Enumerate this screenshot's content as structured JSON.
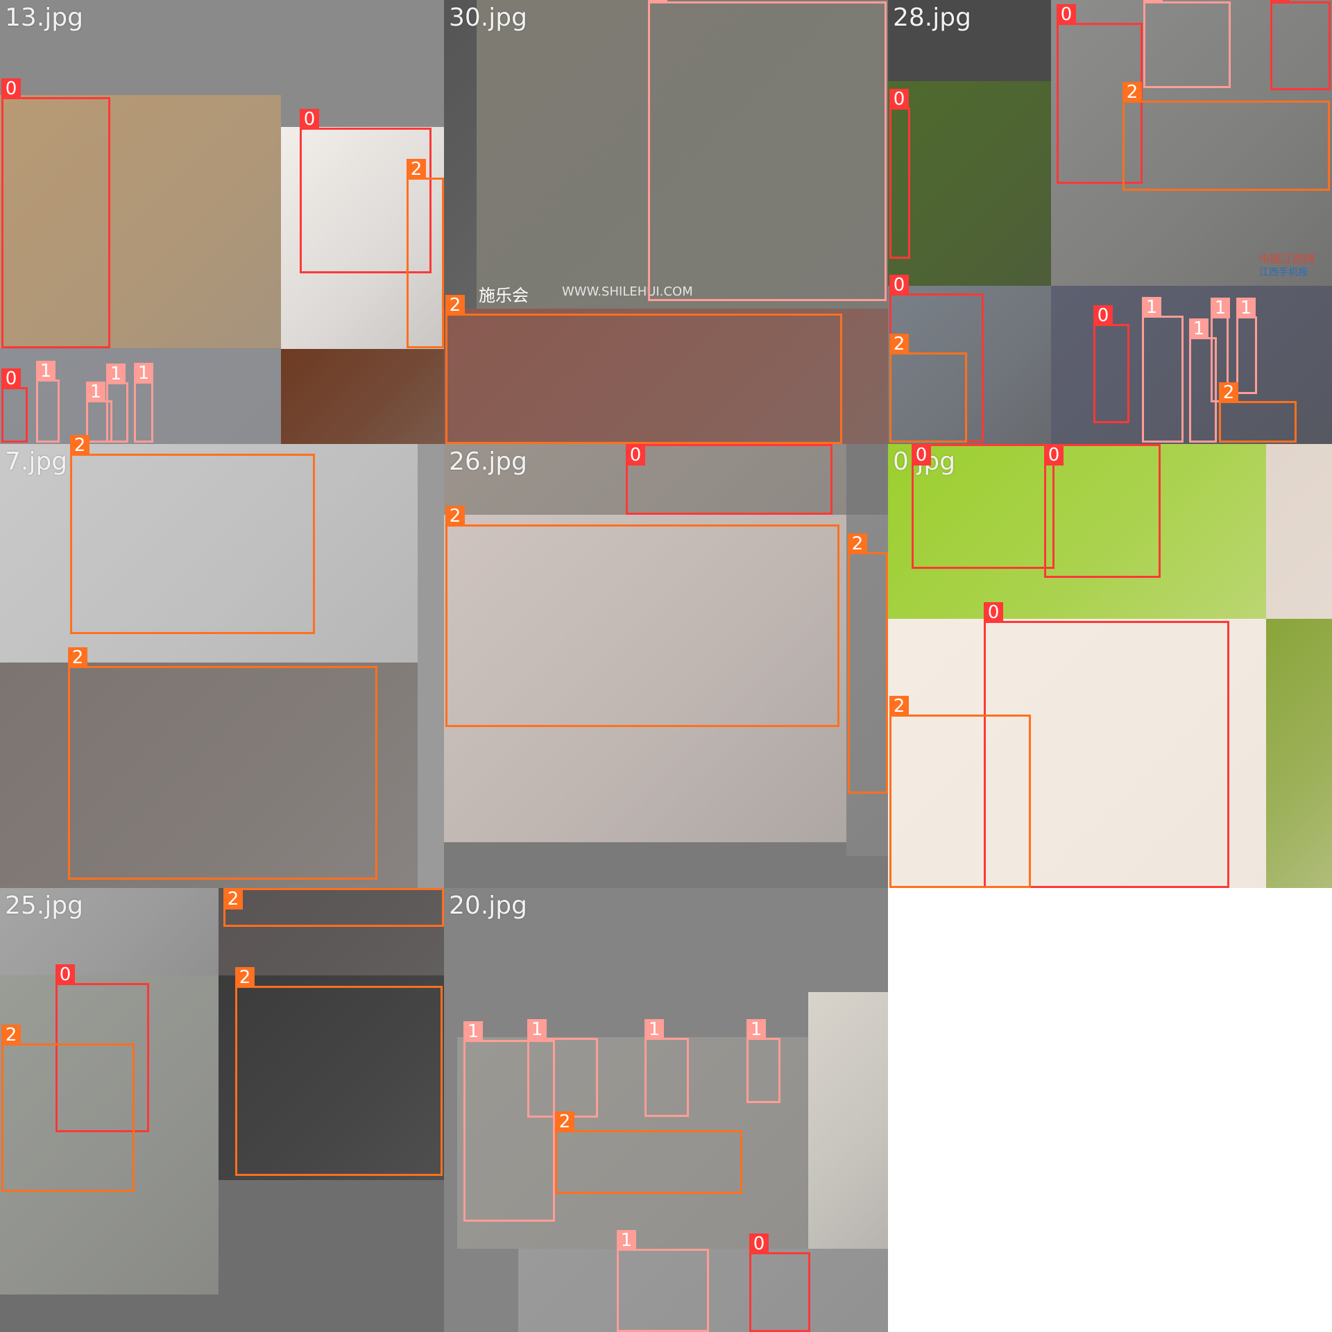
{
  "mosaic": {
    "tiles": [
      {
        "label": "13.jpg",
        "bg": "#8a8a8a",
        "photos": [
          {
            "color": "#b89a74"
          },
          {
            "color": "#f2eeea"
          },
          {
            "color": "#8c8f95"
          },
          {
            "color": "#6e3a22"
          }
        ],
        "boxes": [
          {
            "cls": "0"
          },
          {
            "cls": "0"
          },
          {
            "cls": "2"
          },
          {
            "cls": "0"
          },
          {
            "cls": "1"
          },
          {
            "cls": "1"
          },
          {
            "cls": "1"
          },
          {
            "cls": "1"
          }
        ],
        "watermarks": []
      },
      {
        "label": "30.jpg",
        "bg": "#7a7a7a",
        "photos": [
          {
            "color": "#7d7b72"
          },
          {
            "color": "#8a5a50"
          },
          {
            "color": "#555555"
          }
        ],
        "boxes": [
          {
            "cls": "1"
          },
          {
            "cls": "2"
          }
        ],
        "watermarks": [
          {
            "text": "施乐会"
          },
          {
            "text": "WWW.SHILEHUI.COM"
          }
        ]
      },
      {
        "label": "28.jpg",
        "bg": "#4a4a4a",
        "photos": [
          {
            "color": "#4f6a2e"
          },
          {
            "color": "#8d8d8b"
          },
          {
            "color": "#7a8088"
          },
          {
            "color": "#5d6070"
          }
        ],
        "boxes": [
          {
            "cls": "0"
          },
          {
            "cls": "1"
          },
          {
            "cls": "0"
          },
          {
            "cls": "0"
          },
          {
            "cls": "2"
          },
          {
            "cls": "0"
          },
          {
            "cls": "2"
          },
          {
            "cls": "0"
          },
          {
            "cls": "1"
          },
          {
            "cls": "1"
          },
          {
            "cls": "1"
          },
          {
            "cls": "1"
          },
          {
            "cls": "2"
          }
        ],
        "watermarks": [
          {
            "text": "中国江西网"
          },
          {
            "text": "江西手机报"
          }
        ]
      },
      {
        "label": "7.jpg",
        "bg": "#9a9a9a",
        "photos": [
          {
            "color": "#c9c9c9"
          },
          {
            "color": "#7c7470"
          }
        ],
        "boxes": [
          {
            "cls": "2"
          },
          {
            "cls": "2"
          }
        ],
        "watermarks": []
      },
      {
        "label": "26.jpg",
        "bg": "#7a7a7a",
        "photos": [
          {
            "color": "#9b938c"
          },
          {
            "color": "#cfc4bf"
          },
          {
            "color": "#8a8a8a"
          }
        ],
        "boxes": [
          {
            "cls": "0"
          },
          {
            "cls": "2"
          },
          {
            "cls": "2"
          }
        ],
        "watermarks": []
      },
      {
        "label": "0.jpg",
        "bg": "#e8e0d8",
        "photos": [
          {
            "color": "#9ccf2e"
          },
          {
            "color": "#f4ece2"
          },
          {
            "color": "#8aa53a"
          },
          {
            "color": "#e2d6cc"
          }
        ],
        "boxes": [
          {
            "cls": "0"
          },
          {
            "cls": "0"
          },
          {
            "cls": "0"
          },
          {
            "cls": "2"
          }
        ],
        "watermarks": []
      },
      {
        "label": "25.jpg",
        "bg": "#6e6e6e",
        "photos": [
          {
            "color": "#a6a6a6"
          },
          {
            "color": "#9a9c96"
          },
          {
            "color": "#5a5454"
          },
          {
            "color": "#3b3b3b"
          }
        ],
        "boxes": [
          {
            "cls": "2"
          },
          {
            "cls": "0"
          },
          {
            "cls": "2"
          },
          {
            "cls": "2"
          }
        ],
        "watermarks": []
      },
      {
        "label": "20.jpg",
        "bg": "#848484",
        "photos": [
          {
            "color": "#9a9893"
          },
          {
            "color": "#d8d4cc"
          },
          {
            "color": "#9a9a9a"
          }
        ],
        "boxes": [
          {
            "cls": "1"
          },
          {
            "cls": "1"
          },
          {
            "cls": "1"
          },
          {
            "cls": "1"
          },
          {
            "cls": "2"
          },
          {
            "cls": "1"
          },
          {
            "cls": "0"
          }
        ],
        "watermarks": []
      }
    ]
  }
}
